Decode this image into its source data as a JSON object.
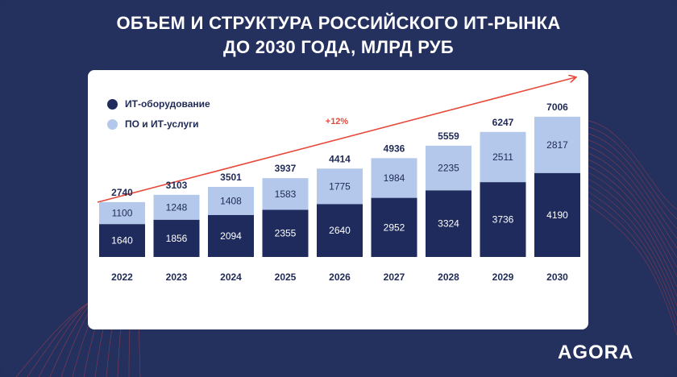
{
  "title": {
    "line1": "ОБЪЕМ И СТРУКТУРА РОССИЙСКОГО ИТ-РЫНКА",
    "line2": "ДО 2030 ГОДА, МЛРД РУБ"
  },
  "logo_text": "AGORA",
  "colors": {
    "background": "#23305e",
    "hardware": "#1f2b5c",
    "services": "#b3c8eb",
    "arrow": "#e8483a",
    "growth": "#e8483a"
  },
  "chart_data": {
    "type": "bar",
    "stacked": true,
    "categories": [
      "2022",
      "2023",
      "2024",
      "2025",
      "2026",
      "2027",
      "2028",
      "2029",
      "2030"
    ],
    "series": [
      {
        "name": "ИТ-оборудование",
        "values": [
          1640,
          1856,
          2094,
          2355,
          2640,
          2952,
          3324,
          3736,
          4190
        ]
      },
      {
        "name": "ПО и ИТ-услуги",
        "values": [
          1100,
          1248,
          1408,
          1583,
          1775,
          1984,
          2235,
          2511,
          2817
        ]
      }
    ],
    "totals": [
      2740,
      3103,
      3501,
      3937,
      4414,
      4936,
      5559,
      6247,
      7006
    ],
    "annotation": "+12%",
    "legend_position": "top-left",
    "ylim": [
      0,
      7006
    ],
    "grid": false
  }
}
